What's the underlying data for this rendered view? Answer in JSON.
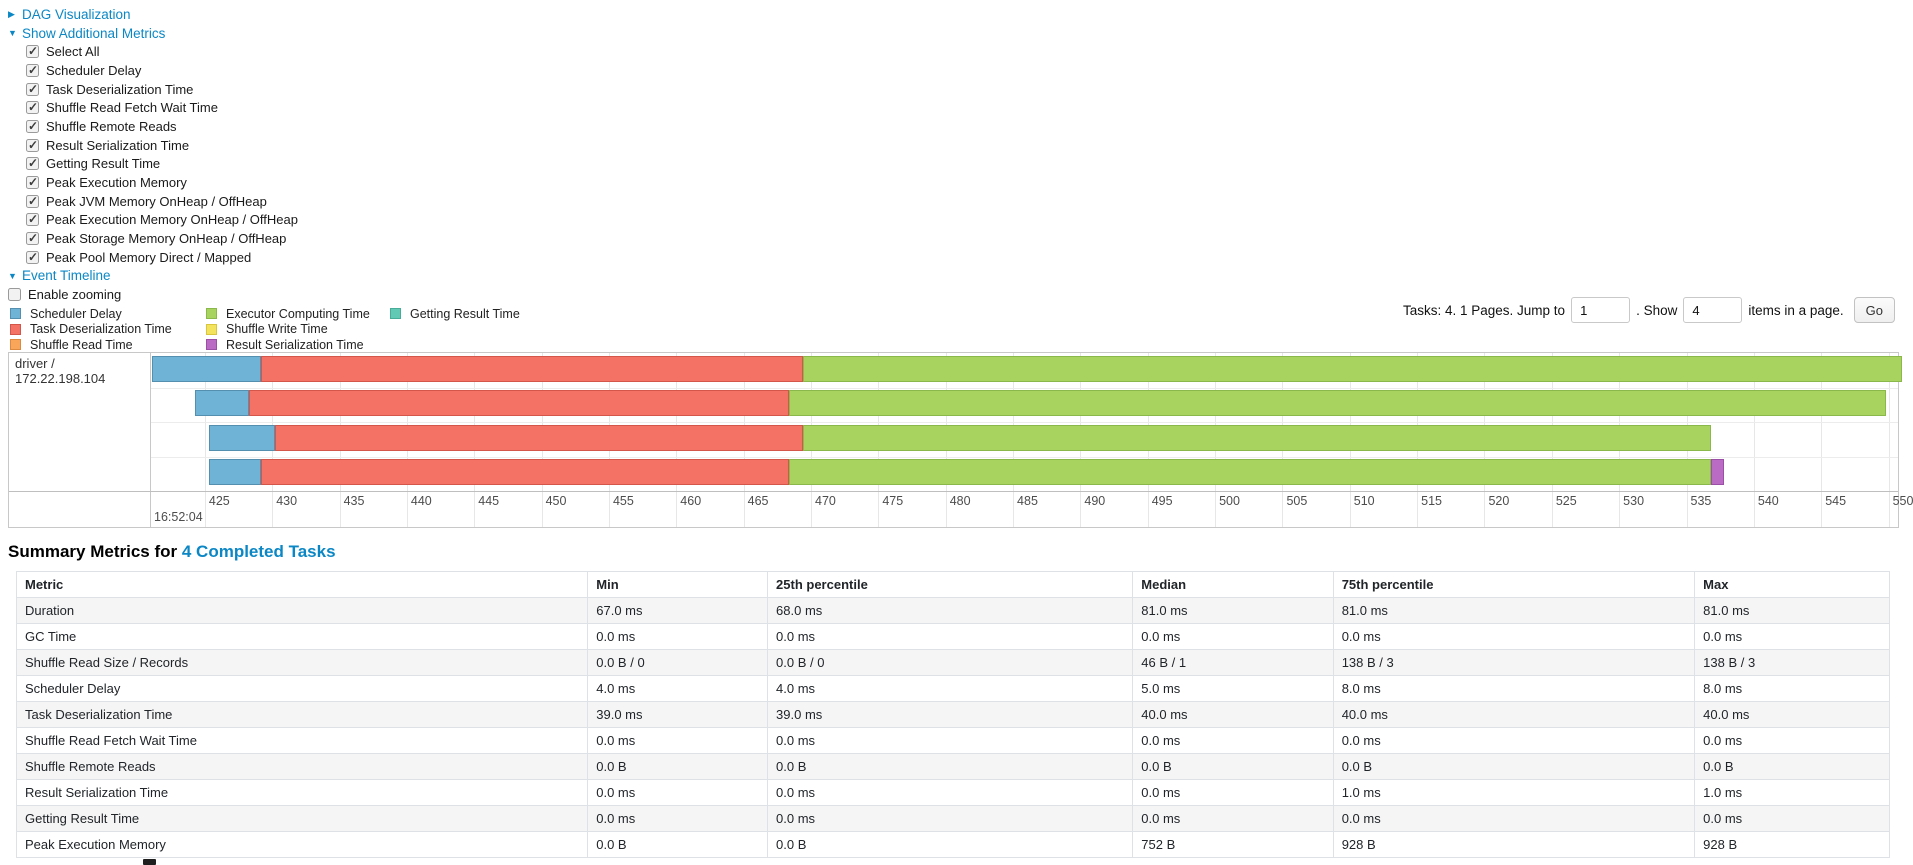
{
  "colors": {
    "link_blue": "#0b87c5",
    "scheduler_delay": {
      "fill": "#6FB3D6",
      "border": "#558FB0"
    },
    "task_deserialization": {
      "fill": "#F47265",
      "border": "#D4554A"
    },
    "shuffle_read": {
      "fill": "#F9A65A",
      "border": "#DB8A40"
    },
    "executor_computing": {
      "fill": "#A8D35F",
      "border": "#8BB84A"
    },
    "shuffle_write": {
      "fill": "#F3E25B",
      "border": "#D9C63F"
    },
    "result_serialization": {
      "fill": "#BA6CC4",
      "border": "#9C4FA6"
    },
    "getting_result": {
      "fill": "#62C9B5",
      "border": "#47AD99"
    }
  },
  "toggles": {
    "dag": "DAG Visualization",
    "metrics": "Show Additional Metrics",
    "timeline": "Event Timeline"
  },
  "metric_checkboxes": [
    "Select All",
    "Scheduler Delay",
    "Task Deserialization Time",
    "Shuffle Read Fetch Wait Time",
    "Shuffle Remote Reads",
    "Result Serialization Time",
    "Getting Result Time",
    "Peak Execution Memory",
    "Peak JVM Memory OnHeap / OffHeap",
    "Peak Execution Memory OnHeap / OffHeap",
    "Peak Storage Memory OnHeap / OffHeap",
    "Peak Pool Memory Direct / Mapped"
  ],
  "enable_zooming_label": "Enable zooming",
  "legend_columns": [
    [
      {
        "key": "scheduler_delay",
        "label": "Scheduler Delay"
      },
      {
        "key": "task_deserialization",
        "label": "Task Deserialization Time"
      },
      {
        "key": "shuffle_read",
        "label": "Shuffle Read Time"
      }
    ],
    [
      {
        "key": "executor_computing",
        "label": "Executor Computing Time"
      },
      {
        "key": "shuffle_write",
        "label": "Shuffle Write Time"
      },
      {
        "key": "result_serialization",
        "label": "Result Serialization Time"
      }
    ],
    [
      {
        "key": "getting_result",
        "label": "Getting Result Time"
      }
    ]
  ],
  "pagination": {
    "prefix": "Tasks: 4. 1 Pages. Jump to",
    "page_value": "1",
    "mid": ". Show",
    "page_size_value": "4",
    "suffix": "items in a page.",
    "go_label": "Go"
  },
  "chart_data": {
    "type": "timeline",
    "executor_label": "driver / 172.22.198.104",
    "axis": {
      "min": 421,
      "max": 550.7,
      "tick_start": 425,
      "tick_end": 550,
      "tick_step": 5,
      "major_label": "16:52:04",
      "grid": true
    },
    "tasks": [
      {
        "segments": [
          {
            "name": "scheduler_delay",
            "start": 421.1,
            "end": 429.2
          },
          {
            "name": "task_deserialization",
            "start": 429.2,
            "end": 469.4
          },
          {
            "name": "executor_computing",
            "start": 469.4,
            "end": 551.0
          }
        ]
      },
      {
        "segments": [
          {
            "name": "scheduler_delay",
            "start": 424.3,
            "end": 428.3
          },
          {
            "name": "task_deserialization",
            "start": 428.3,
            "end": 468.4
          },
          {
            "name": "executor_computing",
            "start": 468.4,
            "end": 549.8
          }
        ]
      },
      {
        "segments": [
          {
            "name": "scheduler_delay",
            "start": 425.3,
            "end": 430.2
          },
          {
            "name": "task_deserialization",
            "start": 430.2,
            "end": 469.4
          },
          {
            "name": "executor_computing",
            "start": 469.4,
            "end": 536.8
          }
        ]
      },
      {
        "segments": [
          {
            "name": "scheduler_delay",
            "start": 425.3,
            "end": 429.2
          },
          {
            "name": "task_deserialization",
            "start": 429.2,
            "end": 468.4
          },
          {
            "name": "executor_computing",
            "start": 468.4,
            "end": 536.8
          },
          {
            "name": "result_serialization",
            "start": 536.8,
            "end": 537.8
          }
        ]
      }
    ]
  },
  "summary": {
    "title_prefix": "Summary Metrics for",
    "title_link": "4 Completed Tasks",
    "headers": [
      "Metric",
      "Min",
      "25th percentile",
      "Median",
      "75th percentile",
      "Max"
    ],
    "col_widths_pct": [
      30.5,
      9.6,
      19.5,
      10.7,
      19.3,
      10.4
    ],
    "rows": [
      [
        "Duration",
        "67.0 ms",
        "68.0 ms",
        "81.0 ms",
        "81.0 ms",
        "81.0 ms"
      ],
      [
        "GC Time",
        "0.0 ms",
        "0.0 ms",
        "0.0 ms",
        "0.0 ms",
        "0.0 ms"
      ],
      [
        "Shuffle Read Size / Records",
        "0.0 B / 0",
        "0.0 B / 0",
        "46 B / 1",
        "138 B / 3",
        "138 B / 3"
      ],
      [
        "Scheduler Delay",
        "4.0 ms",
        "4.0 ms",
        "5.0 ms",
        "8.0 ms",
        "8.0 ms"
      ],
      [
        "Task Deserialization Time",
        "39.0 ms",
        "39.0 ms",
        "40.0 ms",
        "40.0 ms",
        "40.0 ms"
      ],
      [
        "Shuffle Read Fetch Wait Time",
        "0.0 ms",
        "0.0 ms",
        "0.0 ms",
        "0.0 ms",
        "0.0 ms"
      ],
      [
        "Shuffle Remote Reads",
        "0.0 B",
        "0.0 B",
        "0.0 B",
        "0.0 B",
        "0.0 B"
      ],
      [
        "Result Serialization Time",
        "0.0 ms",
        "0.0 ms",
        "0.0 ms",
        "1.0 ms",
        "1.0 ms"
      ],
      [
        "Getting Result Time",
        "0.0 ms",
        "0.0 ms",
        "0.0 ms",
        "0.0 ms",
        "0.0 ms"
      ],
      [
        "Peak Execution Memory",
        "0.0 B",
        "0.0 B",
        "752 B",
        "928 B",
        "928 B"
      ]
    ]
  }
}
